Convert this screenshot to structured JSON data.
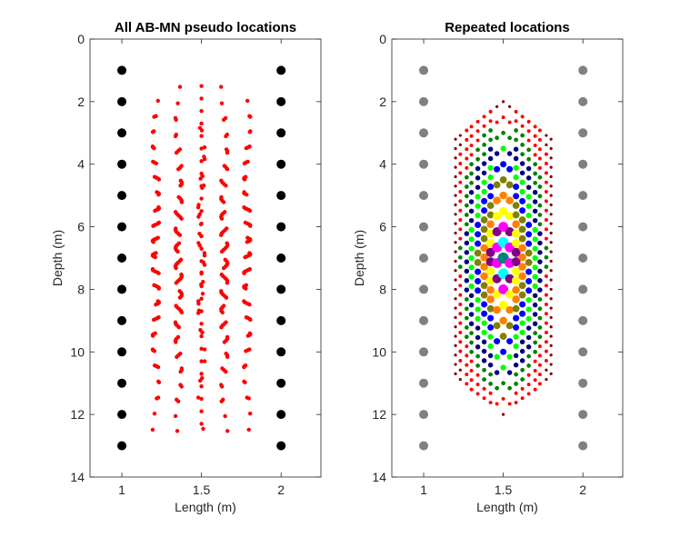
{
  "chart_data": [
    {
      "type": "scatter",
      "title": "All AB-MN pseudo locations",
      "xlabel": "Length (m)",
      "ylabel": "Depth (m)",
      "xlim": [
        0.8,
        2.25
      ],
      "ylim": [
        0,
        14
      ],
      "y_reversed": true,
      "xticks": [
        "1",
        "1.5",
        "2"
      ],
      "yticks": [
        "0",
        "2",
        "4",
        "6",
        "8",
        "10",
        "12",
        "14"
      ],
      "grid": false,
      "legend": "none",
      "electrode_color": "#000000",
      "pseudo_color": "#ff0000",
      "electrodes": {
        "x": [
          1,
          2
        ],
        "depths": [
          1,
          2,
          3,
          4,
          5,
          6,
          7,
          8,
          9,
          10,
          11,
          12,
          13
        ]
      },
      "pseudo_locations": {
        "description_x_range": [
          1.07,
          1.93
        ],
        "depth_range": [
          1.5,
          12.5
        ]
      }
    },
    {
      "type": "scatter",
      "title": "Repeated locations",
      "xlabel": "Length (m)",
      "ylabel": "Depth (m)",
      "xlim": [
        0.8,
        2.25
      ],
      "ylim": [
        0,
        14
      ],
      "y_reversed": true,
      "xticks": [
        "1",
        "1.5",
        "2"
      ],
      "yticks": [
        "0",
        "2",
        "4",
        "6",
        "8",
        "10",
        "12",
        "14"
      ],
      "grid": false,
      "legend": "none",
      "electrode_color": "#808080",
      "electrodes": {
        "x": [
          1,
          2
        ],
        "depths": [
          1,
          2,
          3,
          4,
          5,
          6,
          7,
          8,
          9,
          10,
          11,
          12,
          13
        ]
      },
      "repeat_colors": [
        "#800000",
        "#ff0000",
        "#008000",
        "#000080",
        "#00ff00",
        "#0000ff",
        "#808000",
        "#ff8000",
        "#ffff00",
        "#800080",
        "#ff00ff",
        "#00ffff",
        "#008080"
      ]
    }
  ]
}
